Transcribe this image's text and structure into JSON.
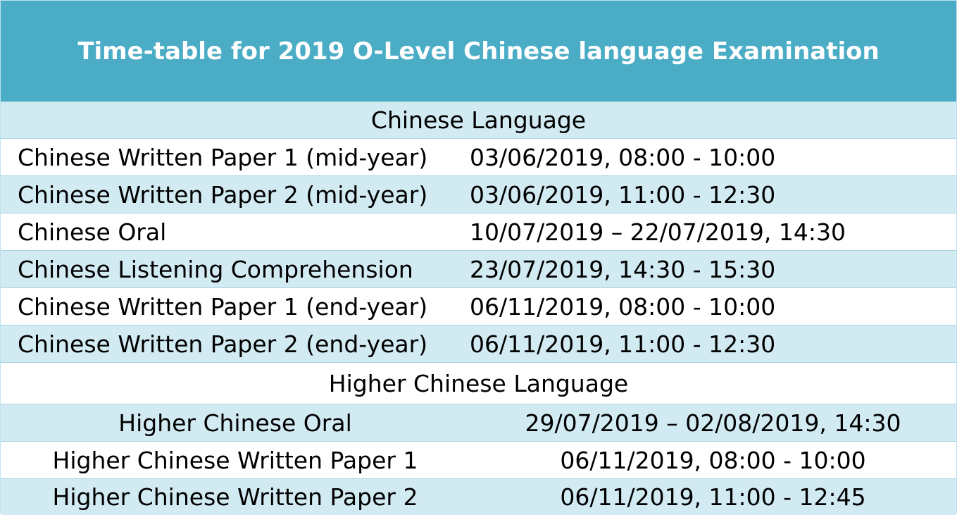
{
  "title": "Time-table for 2019 O-Level Chinese language Examination",
  "sections": [
    {
      "heading": "Chinese Language",
      "rows": [
        {
          "subject": "Chinese Written Paper 1 (mid-year)",
          "schedule": "03/06/2019, 08:00 - 10:00"
        },
        {
          "subject": "Chinese Written Paper 2 (mid-year)",
          "schedule": "03/06/2019, 11:00 - 12:30"
        },
        {
          "subject": "Chinese Oral",
          "schedule": "10/07/2019 – 22/07/2019, 14:30"
        },
        {
          "subject": "Chinese Listening Comprehension",
          "schedule": "23/07/2019, 14:30 - 15:30"
        },
        {
          "subject": "Chinese Written Paper 1 (end-year)",
          "schedule": "06/11/2019, 08:00 - 10:00"
        },
        {
          "subject": "Chinese Written Paper 2 (end-year)",
          "schedule": "06/11/2019, 11:00 - 12:30"
        }
      ]
    },
    {
      "heading": "Higher Chinese Language",
      "rows": [
        {
          "subject": "Higher Chinese Oral",
          "schedule": "29/07/2019 – 02/08/2019, 14:30"
        },
        {
          "subject": "Higher Chinese Written Paper 1",
          "schedule": "06/11/2019, 08:00 - 10:00"
        },
        {
          "subject": "Higher Chinese Written Paper 2",
          "schedule": "06/11/2019, 11:00 - 12:45"
        }
      ]
    }
  ],
  "colors": {
    "header_bg": "#4bacc6",
    "shaded_row": "#d2eaf2",
    "plain_row": "#ffffff",
    "header_text": "#ffffff"
  }
}
